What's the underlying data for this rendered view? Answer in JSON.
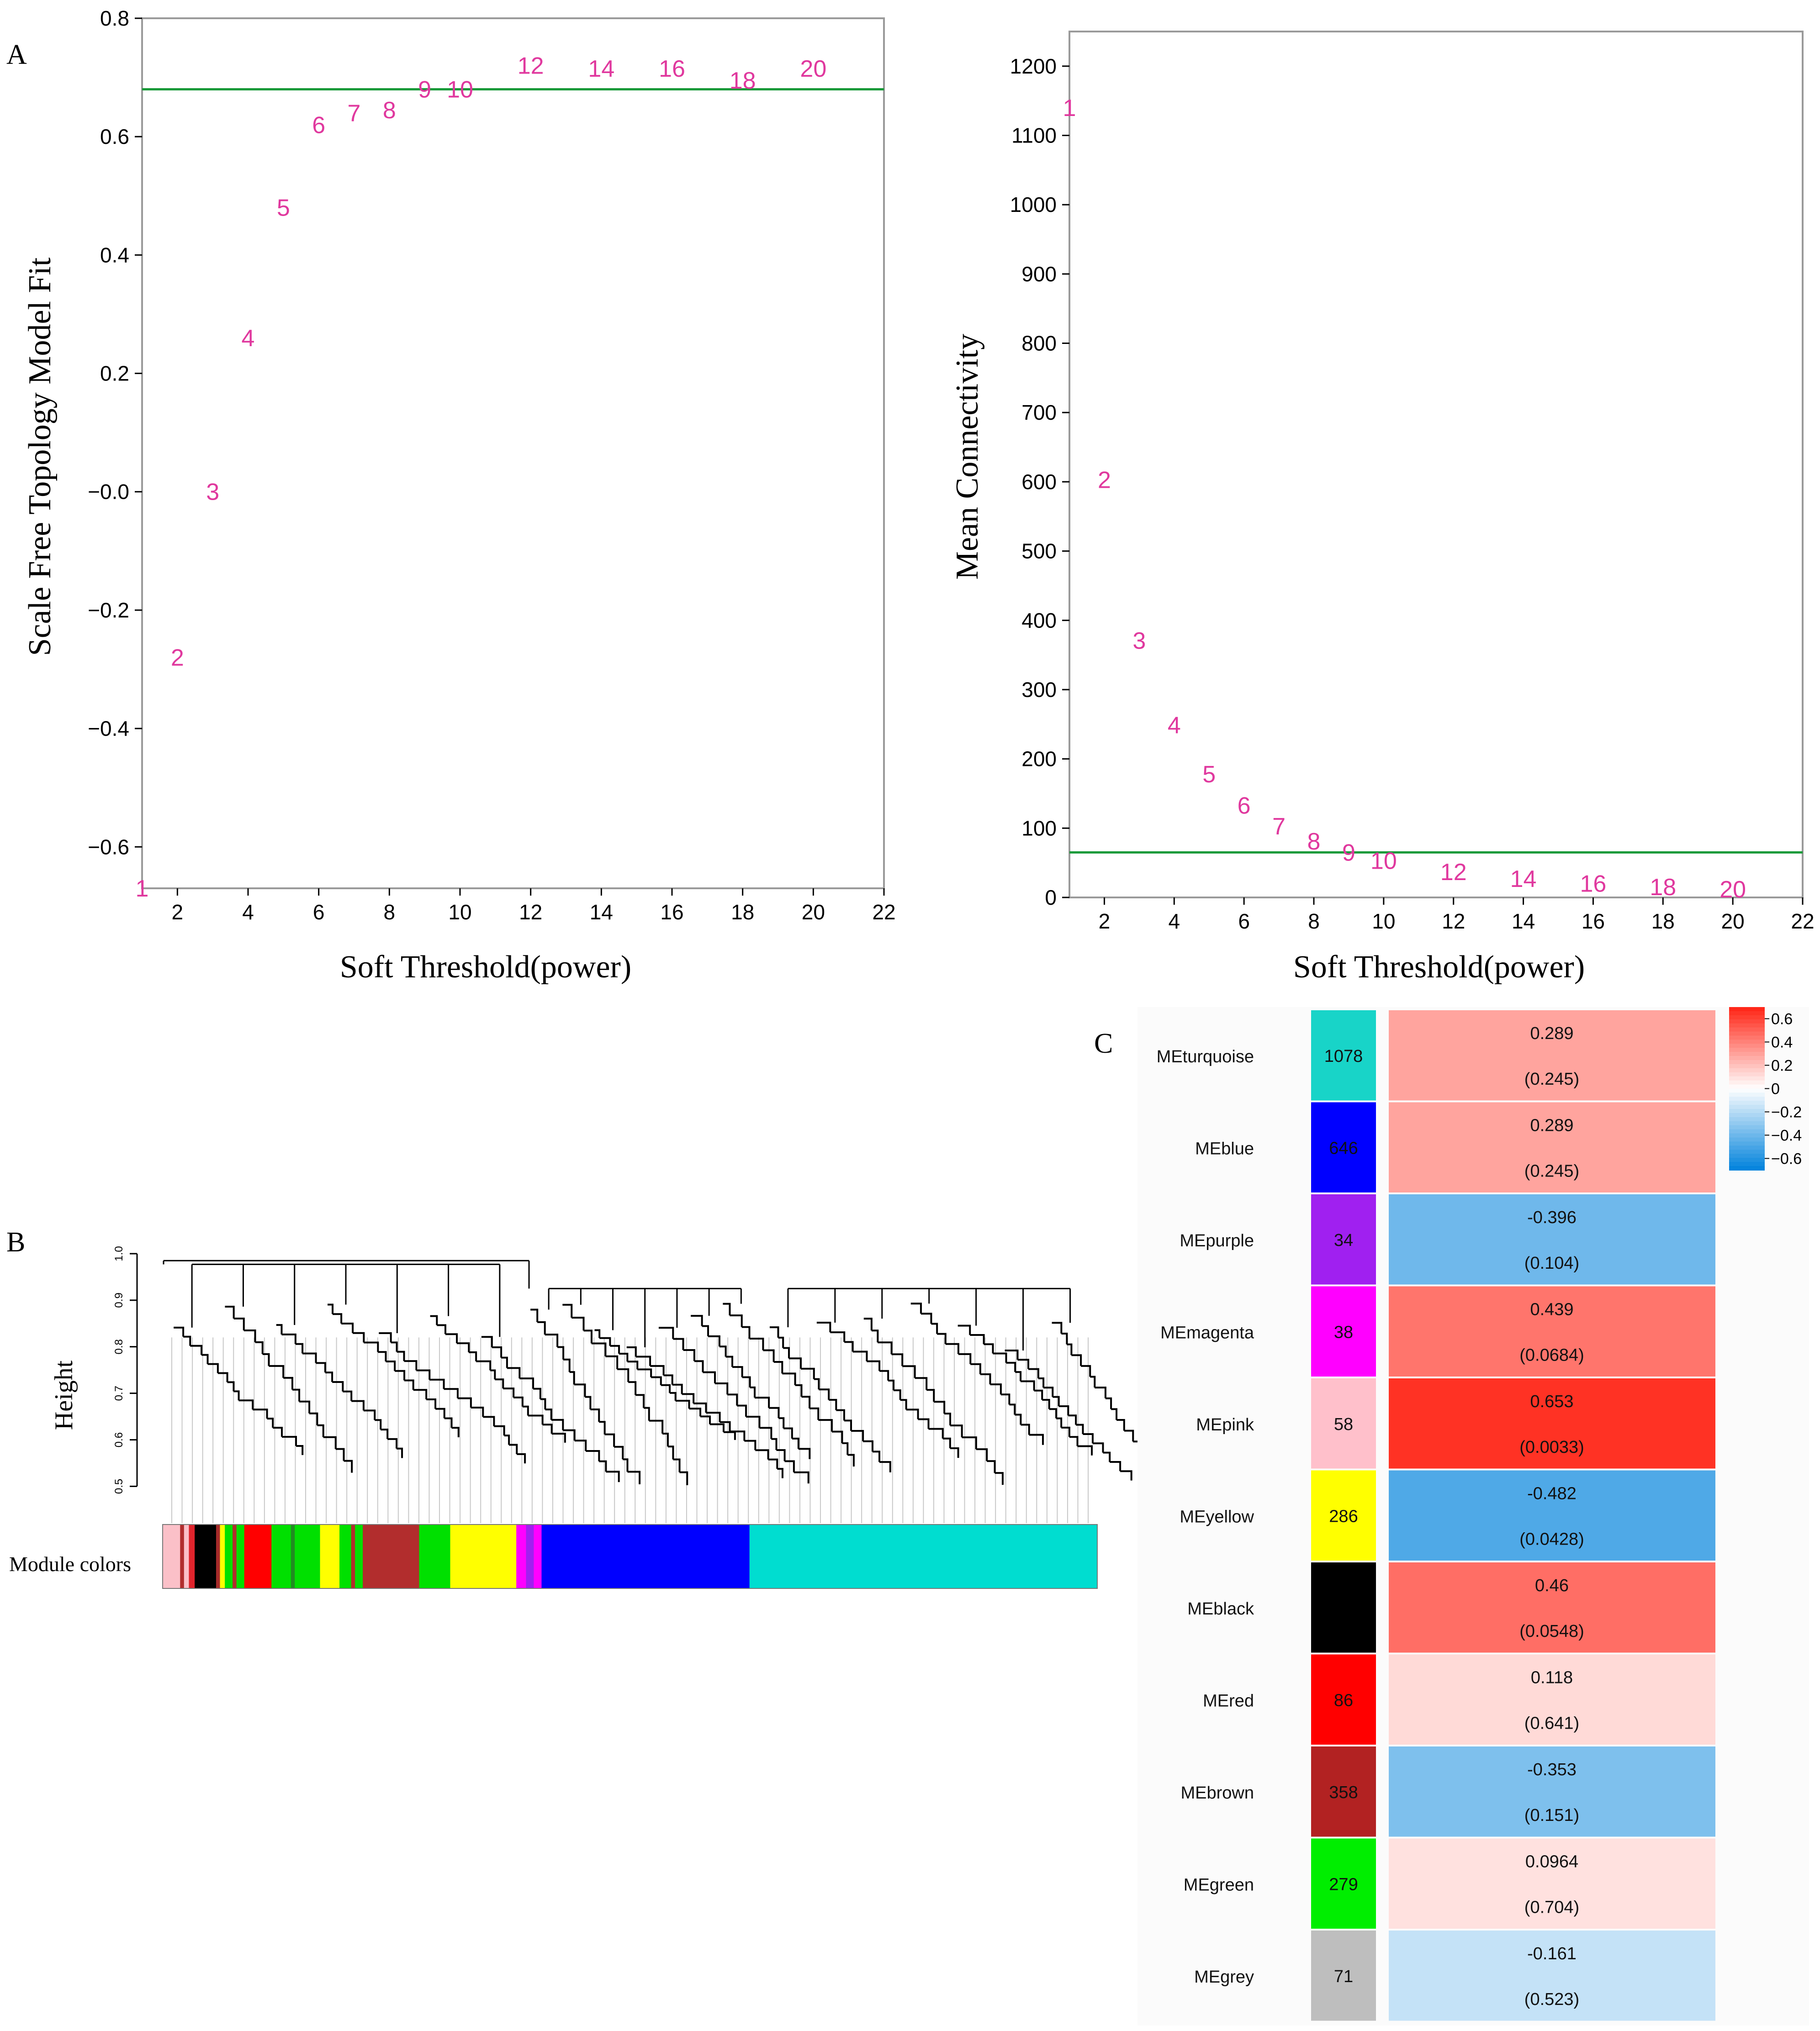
{
  "chart_data": [
    {
      "id": "A_left",
      "type": "scatter",
      "panel_label": "A",
      "xlabel": "Soft Threshold(power)",
      "ylabel": "Scale Free Topology Model Fit",
      "xlim": [
        1,
        22
      ],
      "ylim": [
        -0.67,
        0.8
      ],
      "x_ticks": [
        2,
        4,
        6,
        8,
        10,
        12,
        14,
        16,
        18,
        20,
        22
      ],
      "y_ticks": [
        -0.6,
        -0.4,
        -0.2,
        0.0,
        0.2,
        0.4,
        0.6,
        0.8
      ],
      "y_tick_labels": [
        "−0.6",
        "−0.4",
        "−0.2",
        "−0.0",
        "0.2",
        "0.4",
        "0.6",
        "0.8"
      ],
      "threshold": 0.68,
      "threshold_color": "#1a9a3a",
      "label_color": "#e0389e",
      "points": [
        {
          "x": 1,
          "y": -0.67,
          "label": "1"
        },
        {
          "x": 2,
          "y": -0.28,
          "label": "2"
        },
        {
          "x": 3,
          "y": 0.0,
          "label": "3"
        },
        {
          "x": 4,
          "y": 0.26,
          "label": "4"
        },
        {
          "x": 5,
          "y": 0.48,
          "label": "5"
        },
        {
          "x": 6,
          "y": 0.62,
          "label": "6"
        },
        {
          "x": 7,
          "y": 0.64,
          "label": "7"
        },
        {
          "x": 8,
          "y": 0.645,
          "label": "8"
        },
        {
          "x": 9,
          "y": 0.68,
          "label": "9"
        },
        {
          "x": 10,
          "y": 0.68,
          "label": "10"
        },
        {
          "x": 12,
          "y": 0.72,
          "label": "12"
        },
        {
          "x": 14,
          "y": 0.715,
          "label": "14"
        },
        {
          "x": 16,
          "y": 0.715,
          "label": "16"
        },
        {
          "x": 18,
          "y": 0.695,
          "label": "18"
        },
        {
          "x": 20,
          "y": 0.715,
          "label": "20"
        }
      ]
    },
    {
      "id": "A_right",
      "type": "scatter",
      "xlabel": "Soft Threshold(power)",
      "ylabel": "Mean Connectivity",
      "xlim": [
        1,
        22
      ],
      "ylim": [
        0,
        1250
      ],
      "x_ticks": [
        2,
        4,
        6,
        8,
        10,
        12,
        14,
        16,
        18,
        20,
        22
      ],
      "y_ticks": [
        0,
        100,
        200,
        300,
        400,
        500,
        600,
        700,
        800,
        900,
        1000,
        1100,
        1200
      ],
      "threshold": 65,
      "threshold_color": "#1a9a3a",
      "label_color": "#e0389e",
      "points": [
        {
          "x": 1,
          "y": 1140,
          "label": "1"
        },
        {
          "x": 2,
          "y": 603,
          "label": "2"
        },
        {
          "x": 3,
          "y": 371,
          "label": "3"
        },
        {
          "x": 4,
          "y": 249,
          "label": "4"
        },
        {
          "x": 5,
          "y": 178,
          "label": "5"
        },
        {
          "x": 6,
          "y": 133,
          "label": "6"
        },
        {
          "x": 7,
          "y": 103,
          "label": "7"
        },
        {
          "x": 8,
          "y": 81,
          "label": "8"
        },
        {
          "x": 9,
          "y": 65,
          "label": "9"
        },
        {
          "x": 10,
          "y": 53,
          "label": "10"
        },
        {
          "x": 12,
          "y": 37,
          "label": "12"
        },
        {
          "x": 14,
          "y": 27,
          "label": "14"
        },
        {
          "x": 16,
          "y": 20,
          "label": "16"
        },
        {
          "x": 18,
          "y": 15,
          "label": "18"
        },
        {
          "x": 20,
          "y": 12,
          "label": "20"
        }
      ]
    },
    {
      "id": "B",
      "type": "dendrogram",
      "panel_label": "B",
      "ylabel": "Height",
      "y_ticks": [
        0.5,
        0.6,
        0.7,
        0.8,
        0.9,
        1.0
      ],
      "ylim": [
        0.47,
        1.0
      ],
      "module_colors_label": "Module colors",
      "main_branches": [
        {
          "name": "left",
          "from": 0.0,
          "to": 0.392,
          "merge_height": 0.977
        },
        {
          "name": "middle",
          "from": 0.392,
          "to": 0.64,
          "merge_height": 0.925
        },
        {
          "name": "right",
          "from": 0.64,
          "to": 1.0,
          "merge_height": 0.925
        }
      ],
      "root_height": 0.985,
      "module_bar": [
        {
          "color": "#fbc0c8",
          "w": 0.018
        },
        {
          "color": "#b22d2d",
          "w": 0.004
        },
        {
          "color": "#fbc0c8",
          "w": 0.005
        },
        {
          "color": "#e0242c",
          "w": 0.006
        },
        {
          "color": "#000000",
          "w": 0.022
        },
        {
          "color": "#a52a2a",
          "w": 0.004
        },
        {
          "color": "#ffff00",
          "w": 0.005
        },
        {
          "color": "#00e000",
          "w": 0.008
        },
        {
          "color": "#b22d2d",
          "w": 0.004
        },
        {
          "color": "#00e000",
          "w": 0.008
        },
        {
          "color": "#ff0000",
          "w": 0.028
        },
        {
          "color": "#00e000",
          "w": 0.02
        },
        {
          "color": "#228b22",
          "w": 0.004
        },
        {
          "color": "#00e000",
          "w": 0.026
        },
        {
          "color": "#ffff00",
          "w": 0.02
        },
        {
          "color": "#00e000",
          "w": 0.012
        },
        {
          "color": "#b22d2d",
          "w": 0.004
        },
        {
          "color": "#00e000",
          "w": 0.008
        },
        {
          "color": "#b22d2d",
          "w": 0.058
        },
        {
          "color": "#00e000",
          "w": 0.032
        },
        {
          "color": "#ffff00",
          "w": 0.068
        },
        {
          "color": "#ff00ff",
          "w": 0.01
        },
        {
          "color": "#a020f0",
          "w": 0.008
        },
        {
          "color": "#ff00ff",
          "w": 0.008
        },
        {
          "color": "#0000ff",
          "w": 0.214
        },
        {
          "color": "#00ddd0",
          "w": 0.358
        }
      ]
    },
    {
      "id": "C",
      "type": "heatmap",
      "panel_label": "C",
      "color_scale_limits": [
        -0.7,
        0.7
      ],
      "color_scale_ticks": [
        0.6,
        0.4,
        0.2,
        0,
        -0.2,
        -0.4,
        -0.6
      ],
      "color_scale_tick_labels": [
        "0.6",
        "0.4",
        "0.2",
        "0",
        "−0.2",
        "−0.4",
        "−0.6"
      ],
      "rows": [
        {
          "module": "MEturquoise",
          "color": "#18d4c8",
          "genes": "1078",
          "value": 0.289,
          "value_label": "0.289",
          "pvalue": "(0.245)"
        },
        {
          "module": "MEblue",
          "color": "#0000ff",
          "genes": "646",
          "value": 0.289,
          "value_label": "0.289",
          "pvalue": "(0.245)"
        },
        {
          "module": "MEpurple",
          "color": "#a020f0",
          "genes": "34",
          "value": -0.396,
          "value_label": "-0.396",
          "pvalue": "(0.104)"
        },
        {
          "module": "MEmagenta",
          "color": "#ff00ff",
          "genes": "38",
          "value": 0.439,
          "value_label": "0.439",
          "pvalue": "(0.0684)"
        },
        {
          "module": "MEpink",
          "color": "#ffc0cb",
          "genes": "58",
          "value": 0.653,
          "value_label": "0.653",
          "pvalue": "(0.0033)"
        },
        {
          "module": "MEyellow",
          "color": "#ffff00",
          "genes": "286",
          "value": -0.482,
          "value_label": "-0.482",
          "pvalue": "(0.0428)"
        },
        {
          "module": "MEblack",
          "color": "#000000",
          "genes": "",
          "value": 0.46,
          "value_label": "0.46",
          "pvalue": "(0.0548)"
        },
        {
          "module": "MEred",
          "color": "#ff0000",
          "genes": "86",
          "value": 0.118,
          "value_label": "0.118",
          "pvalue": "(0.641)"
        },
        {
          "module": "MEbrown",
          "color": "#b22222",
          "genes": "358",
          "value": -0.353,
          "value_label": "-0.353",
          "pvalue": "(0.151)"
        },
        {
          "module": "MEgreen",
          "color": "#00ee00",
          "genes": "279",
          "value": 0.0964,
          "value_label": "0.0964",
          "pvalue": "(0.704)"
        },
        {
          "module": "MEgrey",
          "color": "#bebebe",
          "genes": "71",
          "value": -0.161,
          "value_label": "-0.161",
          "pvalue": "(0.523)"
        }
      ]
    }
  ]
}
